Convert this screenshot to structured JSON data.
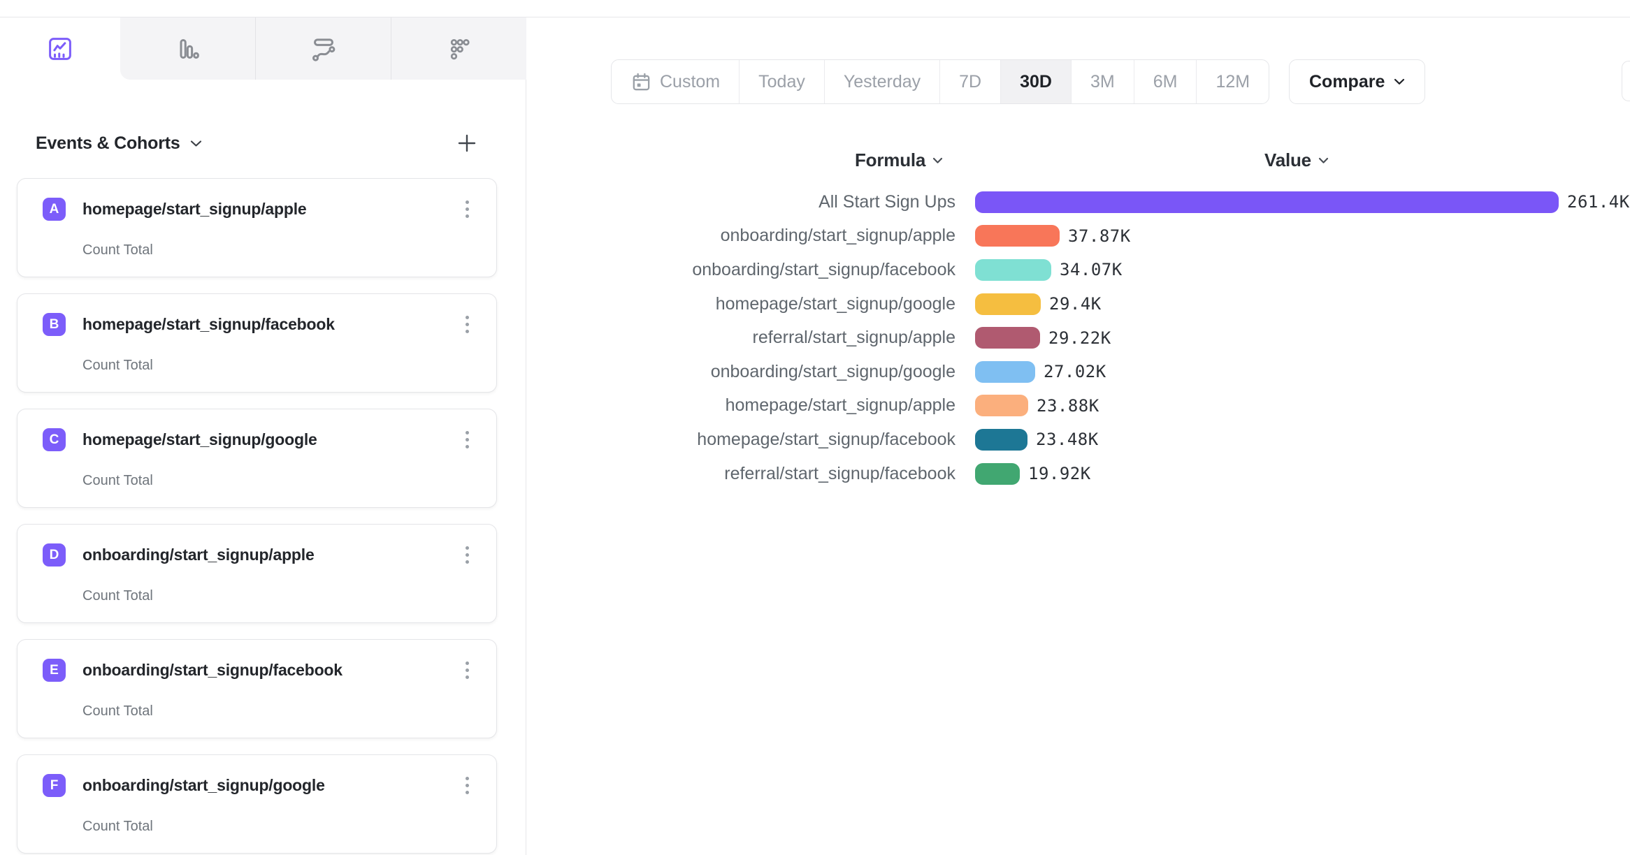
{
  "colors": {
    "accent_purple": "#7A56F7",
    "badge_purple": "#7C5DFA",
    "tab_icon_gray": "#8a8d93",
    "border_gray": "#e5e6e9"
  },
  "chart_type_tabs": [
    {
      "id": "insights",
      "icon": "line-chart-icon",
      "active": true
    },
    {
      "id": "bar-chart",
      "icon": "bar-chart-icon",
      "active": false
    },
    {
      "id": "flows",
      "icon": "flow-icon",
      "active": false
    },
    {
      "id": "scatter",
      "icon": "dots-grid-icon",
      "active": false
    }
  ],
  "sidebar": {
    "header": {
      "title": "Events & Cohorts",
      "chevron_icon": "chevron-down-icon",
      "add_icon": "plus-icon"
    },
    "events": [
      {
        "letter": "A",
        "name": "homepage/start_signup/apple",
        "metric": "Count Total"
      },
      {
        "letter": "B",
        "name": "homepage/start_signup/facebook",
        "metric": "Count Total"
      },
      {
        "letter": "C",
        "name": "homepage/start_signup/google",
        "metric": "Count Total"
      },
      {
        "letter": "D",
        "name": "onboarding/start_signup/apple",
        "metric": "Count Total"
      },
      {
        "letter": "E",
        "name": "onboarding/start_signup/facebook",
        "metric": "Count Total"
      },
      {
        "letter": "F",
        "name": "onboarding/start_signup/google",
        "metric": "Count Total"
      }
    ]
  },
  "toolbar": {
    "date_ranges": [
      {
        "label": "Custom",
        "icon": "calendar-icon",
        "active": false
      },
      {
        "label": "Today",
        "active": false
      },
      {
        "label": "Yesterday",
        "active": false
      },
      {
        "label": "7D",
        "active": false
      },
      {
        "label": "30D",
        "active": true
      },
      {
        "label": "3M",
        "active": false
      },
      {
        "label": "6M",
        "active": false
      },
      {
        "label": "12M",
        "active": false
      }
    ],
    "compare_label": "Compare"
  },
  "table_headers": {
    "formula": "Formula",
    "value": "Value"
  },
  "chart_data": {
    "type": "bar",
    "orientation": "horizontal",
    "title": "",
    "xlabel": "Value",
    "ylabel": "Formula",
    "xlim": [
      0,
      261400
    ],
    "gridlines": false,
    "legend": "none",
    "categories": [
      "All Start Sign Ups",
      "onboarding/start_signup/apple",
      "onboarding/start_signup/facebook",
      "homepage/start_signup/google",
      "referral/start_signup/apple",
      "onboarding/start_signup/google",
      "homepage/start_signup/apple",
      "homepage/start_signup/facebook",
      "referral/start_signup/facebook"
    ],
    "values": [
      261400,
      37870,
      34070,
      29400,
      29220,
      27020,
      23880,
      23480,
      19920
    ],
    "value_labels": [
      "261.4K",
      "37.87K",
      "34.07K",
      "29.4K",
      "29.22K",
      "27.02K",
      "23.88K",
      "23.48K",
      "19.92K"
    ],
    "bar_colors": [
      "#7A56F7",
      "#F87659",
      "#7FE0D3",
      "#F5BE40",
      "#B05A70",
      "#7FBFF2",
      "#FBAF7D",
      "#1D7795",
      "#41A771"
    ]
  }
}
